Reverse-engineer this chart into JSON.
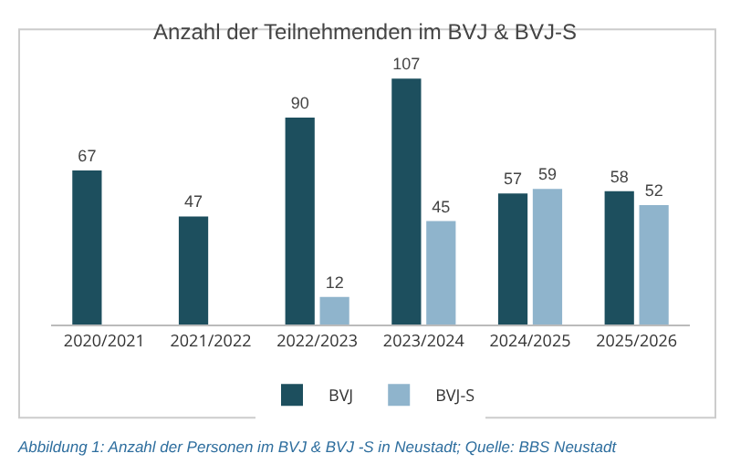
{
  "chart_data": {
    "type": "bar",
    "title": "Anzahl der Teilnehmenden im BVJ & BVJ-S",
    "categories": [
      "2020/2021",
      "2021/2022",
      "2022/2023",
      "2023/2024",
      "2024/2025",
      "2025/2026"
    ],
    "series": [
      {
        "name": "BVJ",
        "color": "#1d4f5e",
        "values": [
          67,
          47,
          90,
          107,
          57,
          58
        ]
      },
      {
        "name": "BVJ-S",
        "color": "#8fb4cc",
        "values": [
          null,
          null,
          12,
          45,
          59,
          52
        ]
      }
    ],
    "data_labels": true,
    "legend": "bottom",
    "grid": false,
    "annotations": [
      "Abbildung 1: Anzahl der Personen im BVJ & BVJ -S in Neustadt; Quelle: BBS Neustadt"
    ]
  }
}
